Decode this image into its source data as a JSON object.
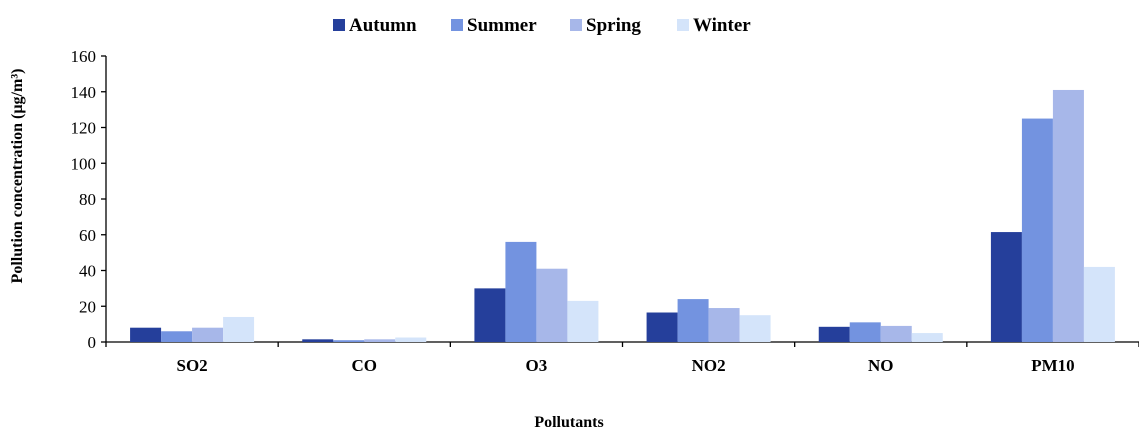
{
  "chart_data": {
    "type": "bar",
    "title": "",
    "xlabel": "Pollutants",
    "ylabel": "Pollution concentration (µg/m³)",
    "categories": [
      "SO2",
      "CO",
      "O3",
      "NO2",
      "NO",
      "PM10"
    ],
    "series": [
      {
        "name": "Autumn",
        "color": "#253f9b",
        "values": [
          8,
          1.5,
          30,
          16.5,
          8.5,
          61.5
        ]
      },
      {
        "name": "Summer",
        "color": "#7393e0",
        "values": [
          6,
          1,
          56,
          24,
          11,
          125
        ]
      },
      {
        "name": "Spring",
        "color": "#a7b7e9",
        "values": [
          8,
          1.5,
          41,
          19,
          9,
          141
        ]
      },
      {
        "name": "Winter",
        "color": "#d4e4fa",
        "values": [
          14,
          2.5,
          23,
          15,
          5,
          42
        ]
      }
    ],
    "ylim": [
      0,
      160
    ],
    "yticks": [
      0,
      20,
      40,
      60,
      80,
      100,
      120,
      140,
      160
    ],
    "grid": false,
    "legend_position": "top"
  }
}
